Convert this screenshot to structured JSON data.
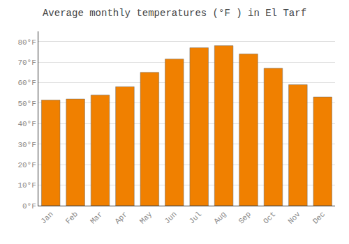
{
  "chart_data": {
    "type": "bar",
    "title": "Average monthly temperatures (°F ) in El Tarf",
    "categories": [
      "Jan",
      "Feb",
      "Mar",
      "Apr",
      "May",
      "Jun",
      "Jul",
      "Aug",
      "Sep",
      "Oct",
      "Nov",
      "Dec"
    ],
    "values": [
      51.5,
      52,
      54,
      58,
      65,
      71.5,
      77,
      78,
      74,
      67,
      59,
      53
    ],
    "color": "#F08000",
    "ylim": [
      0,
      85
    ],
    "yticks": [
      {
        "value": 0,
        "label": "0°F"
      },
      {
        "value": 10,
        "label": "10°F"
      },
      {
        "value": 20,
        "label": "20°F"
      },
      {
        "value": 30,
        "label": "30°F"
      },
      {
        "value": 40,
        "label": "40°F"
      },
      {
        "value": 50,
        "label": "50°F"
      },
      {
        "value": 60,
        "label": "60°F"
      },
      {
        "value": 70,
        "label": "70°F"
      },
      {
        "value": 80,
        "label": "80°F"
      }
    ],
    "grid": true
  }
}
